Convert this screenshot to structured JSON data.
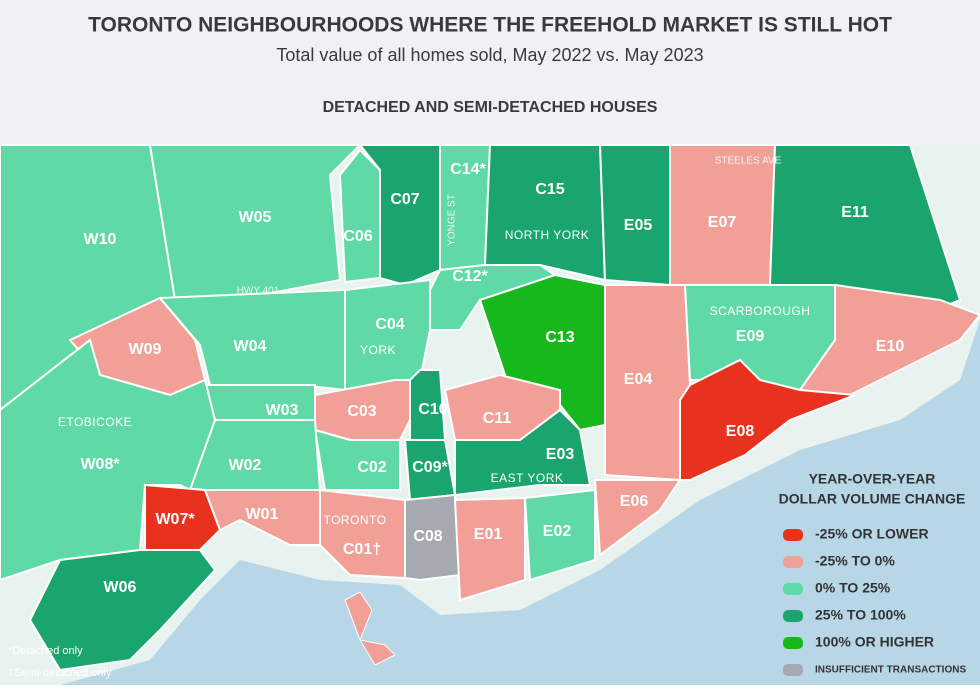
{
  "header": {
    "title": "TORONTO NEIGHBOURHOODS WHERE THE FREEHOLD MARKET IS STILL HOT",
    "subtitle": "Total value of all homes sold, May 2022 vs. May 2023",
    "section": "DETACHED AND SEMI-DETACHED HOUSES"
  },
  "regions": [
    {
      "label": "W10",
      "color": "#5fd9a5"
    },
    {
      "label": "W05",
      "color": "#5fd9a5"
    },
    {
      "label": "C06",
      "color": "#5fd9a5"
    },
    {
      "label": "C07",
      "color": "#1aa56e"
    },
    {
      "label": "C14*",
      "color": "#5fd9a5"
    },
    {
      "label": "C15",
      "color": "#1aa56e"
    },
    {
      "label": "E05",
      "color": "#1aa56e"
    },
    {
      "label": "E07",
      "color": "#f2a097"
    },
    {
      "label": "E11",
      "color": "#1aa56e"
    },
    {
      "label": "C12*",
      "color": "#5fd9a5"
    },
    {
      "label": "C13",
      "color": "#16b81c"
    },
    {
      "label": "E04",
      "color": "#f2a097"
    },
    {
      "label": "E09",
      "color": "#5fd9a5"
    },
    {
      "label": "E10",
      "color": "#f2a097"
    },
    {
      "label": "E08",
      "color": "#e8321e"
    },
    {
      "label": "W09",
      "color": "#f2a097"
    },
    {
      "label": "W04",
      "color": "#5fd9a5"
    },
    {
      "label": "C04",
      "color": "#5fd9a5"
    },
    {
      "label": "W03",
      "color": "#5fd9a5"
    },
    {
      "label": "C03",
      "color": "#f2a097"
    },
    {
      "label": "C10",
      "color": "#1aa56e"
    },
    {
      "label": "C11",
      "color": "#f2a097"
    },
    {
      "label": "C02",
      "color": "#5fd9a5"
    },
    {
      "label": "C09*",
      "color": "#1aa56e"
    },
    {
      "label": "E03",
      "color": "#1aa56e"
    },
    {
      "label": "W02",
      "color": "#5fd9a5"
    },
    {
      "label": "W08*",
      "color": "#5fd9a5"
    },
    {
      "label": "W07*",
      "color": "#e8321e"
    },
    {
      "label": "W01",
      "color": "#f2a097"
    },
    {
      "label": "C01†",
      "color": "#f2a097"
    },
    {
      "label": "C08",
      "color": "#a7a9b0"
    },
    {
      "label": "E01",
      "color": "#f2a097"
    },
    {
      "label": "E02",
      "color": "#5fd9a5"
    },
    {
      "label": "E06",
      "color": "#f2a097"
    },
    {
      "label": "W06",
      "color": "#1aa56e"
    }
  ],
  "places": [
    "ETOBICOKE",
    "YORK",
    "TORONTO",
    "EAST YORK",
    "NORTH YORK",
    "SCARBOROUGH"
  ],
  "roads": [
    "HWY 401",
    "YONGE ST",
    "STEELES AVE"
  ],
  "legend": {
    "title_lines": [
      "YEAR-OVER-YEAR",
      "DOLLAR VOLUME CHANGE"
    ],
    "items": [
      {
        "label": "-25% OR LOWER",
        "color": "#e8321e"
      },
      {
        "label": "-25% TO 0%",
        "color": "#f2a097"
      },
      {
        "label": "0% TO 25%",
        "color": "#5fd9a5"
      },
      {
        "label": "25% TO 100%",
        "color": "#1aa56e"
      },
      {
        "label": "100% OR HIGHER",
        "color": "#16b81c"
      },
      {
        "label": "INSUFFICIENT TRANSACTIONS",
        "color": "#a7a9b0"
      }
    ]
  },
  "footnotes": [
    "*Detached only",
    "†Semi-detached only"
  ]
}
